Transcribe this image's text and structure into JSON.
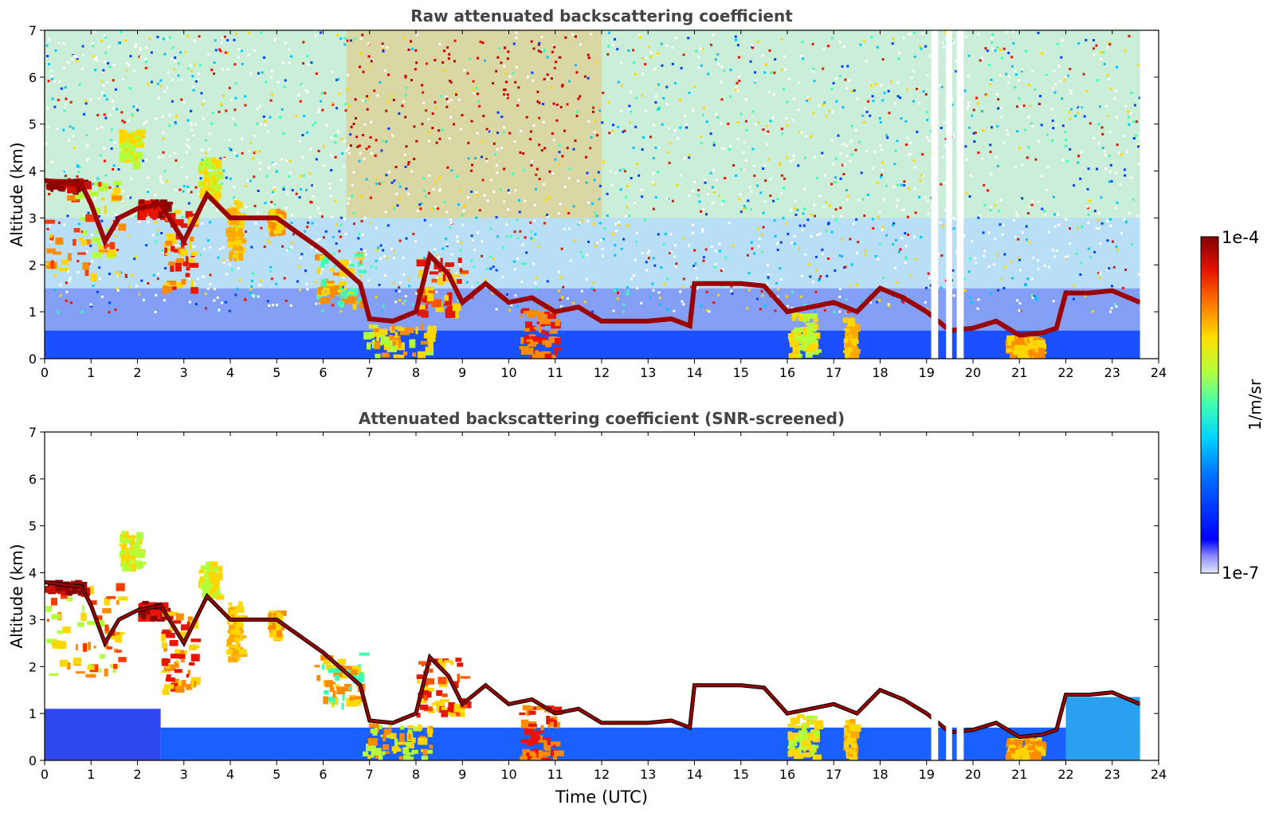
{
  "figure": {
    "colorbar": {
      "label": "1/m/sr",
      "max_label": "1e-4",
      "min_label": "1e-7",
      "min_value": 1e-07,
      "max_value": 0.0001,
      "scale": "log",
      "colormap": "jet",
      "low_end_color": "#e6e6f7"
    }
  },
  "chart_data": [
    {
      "type": "heatmap",
      "title": "Raw attenuated backscattering coefficient",
      "xlabel": "",
      "ylabel": "Altitude (km)",
      "xlim": [
        0,
        24
      ],
      "ylim": [
        0,
        7
      ],
      "xticks": [
        "0",
        "1",
        "2",
        "3",
        "4",
        "5",
        "6",
        "7",
        "8",
        "9",
        "10",
        "11",
        "12",
        "13",
        "14",
        "15",
        "16",
        "17",
        "18",
        "19",
        "20",
        "21",
        "22",
        "23",
        "24"
      ],
      "yticks": [
        "0",
        "1",
        "2",
        "3",
        "4",
        "5",
        "6",
        "7"
      ],
      "grid": false,
      "data_end_time": 23.6,
      "missing_time_bands": [
        [
          19.1,
          19.25
        ],
        [
          19.42,
          19.55
        ],
        [
          19.65,
          19.8
        ]
      ],
      "cloud_top_km": [
        [
          0.0,
          3.8
        ],
        [
          0.8,
          3.7
        ],
        [
          1.0,
          3.3
        ],
        [
          1.3,
          2.5
        ],
        [
          1.6,
          3.0
        ],
        [
          2.0,
          3.2
        ],
        [
          2.5,
          3.3
        ],
        [
          3.0,
          2.5
        ],
        [
          3.5,
          3.5
        ],
        [
          4.0,
          3.0
        ],
        [
          5.0,
          3.0
        ],
        [
          6.0,
          2.3
        ],
        [
          6.8,
          1.6
        ],
        [
          7.0,
          0.85
        ],
        [
          7.5,
          0.8
        ],
        [
          8.0,
          1.0
        ],
        [
          8.3,
          2.2
        ],
        [
          8.7,
          1.8
        ],
        [
          9.0,
          1.2
        ],
        [
          9.5,
          1.6
        ],
        [
          10.0,
          1.2
        ],
        [
          10.5,
          1.3
        ],
        [
          11.0,
          1.0
        ],
        [
          11.5,
          1.1
        ],
        [
          12.0,
          0.8
        ],
        [
          13.0,
          0.8
        ],
        [
          13.5,
          0.85
        ],
        [
          13.9,
          0.7
        ],
        [
          14.0,
          1.6
        ],
        [
          15.0,
          1.6
        ],
        [
          15.5,
          1.55
        ],
        [
          16.0,
          1.0
        ],
        [
          16.5,
          1.1
        ],
        [
          17.0,
          1.2
        ],
        [
          17.5,
          1.0
        ],
        [
          18.0,
          1.5
        ],
        [
          18.5,
          1.3
        ],
        [
          19.0,
          1.0
        ],
        [
          19.5,
          0.6
        ],
        [
          20.0,
          0.65
        ],
        [
          20.5,
          0.8
        ],
        [
          21.0,
          0.5
        ],
        [
          21.5,
          0.55
        ],
        [
          21.8,
          0.65
        ],
        [
          22.0,
          1.4
        ],
        [
          22.5,
          1.4
        ],
        [
          23.0,
          1.45
        ],
        [
          23.6,
          1.2
        ]
      ]
    },
    {
      "type": "heatmap",
      "title": "Attenuated backscattering coefficient (SNR-screened)",
      "xlabel": "Time (UTC)",
      "ylabel": "Altitude (km)",
      "xlim": [
        0,
        24
      ],
      "ylim": [
        0,
        7
      ],
      "xticks": [
        "0",
        "1",
        "2",
        "3",
        "4",
        "5",
        "6",
        "7",
        "8",
        "9",
        "10",
        "11",
        "12",
        "13",
        "14",
        "15",
        "16",
        "17",
        "18",
        "19",
        "20",
        "21",
        "22",
        "23",
        "24"
      ],
      "yticks": [
        "0",
        "1",
        "2",
        "3",
        "4",
        "5",
        "6",
        "7"
      ],
      "grid": false,
      "data_end_time": 23.6,
      "missing_time_bands": [
        [
          19.1,
          19.25
        ],
        [
          19.42,
          19.55
        ],
        [
          19.65,
          19.8
        ]
      ]
    }
  ]
}
